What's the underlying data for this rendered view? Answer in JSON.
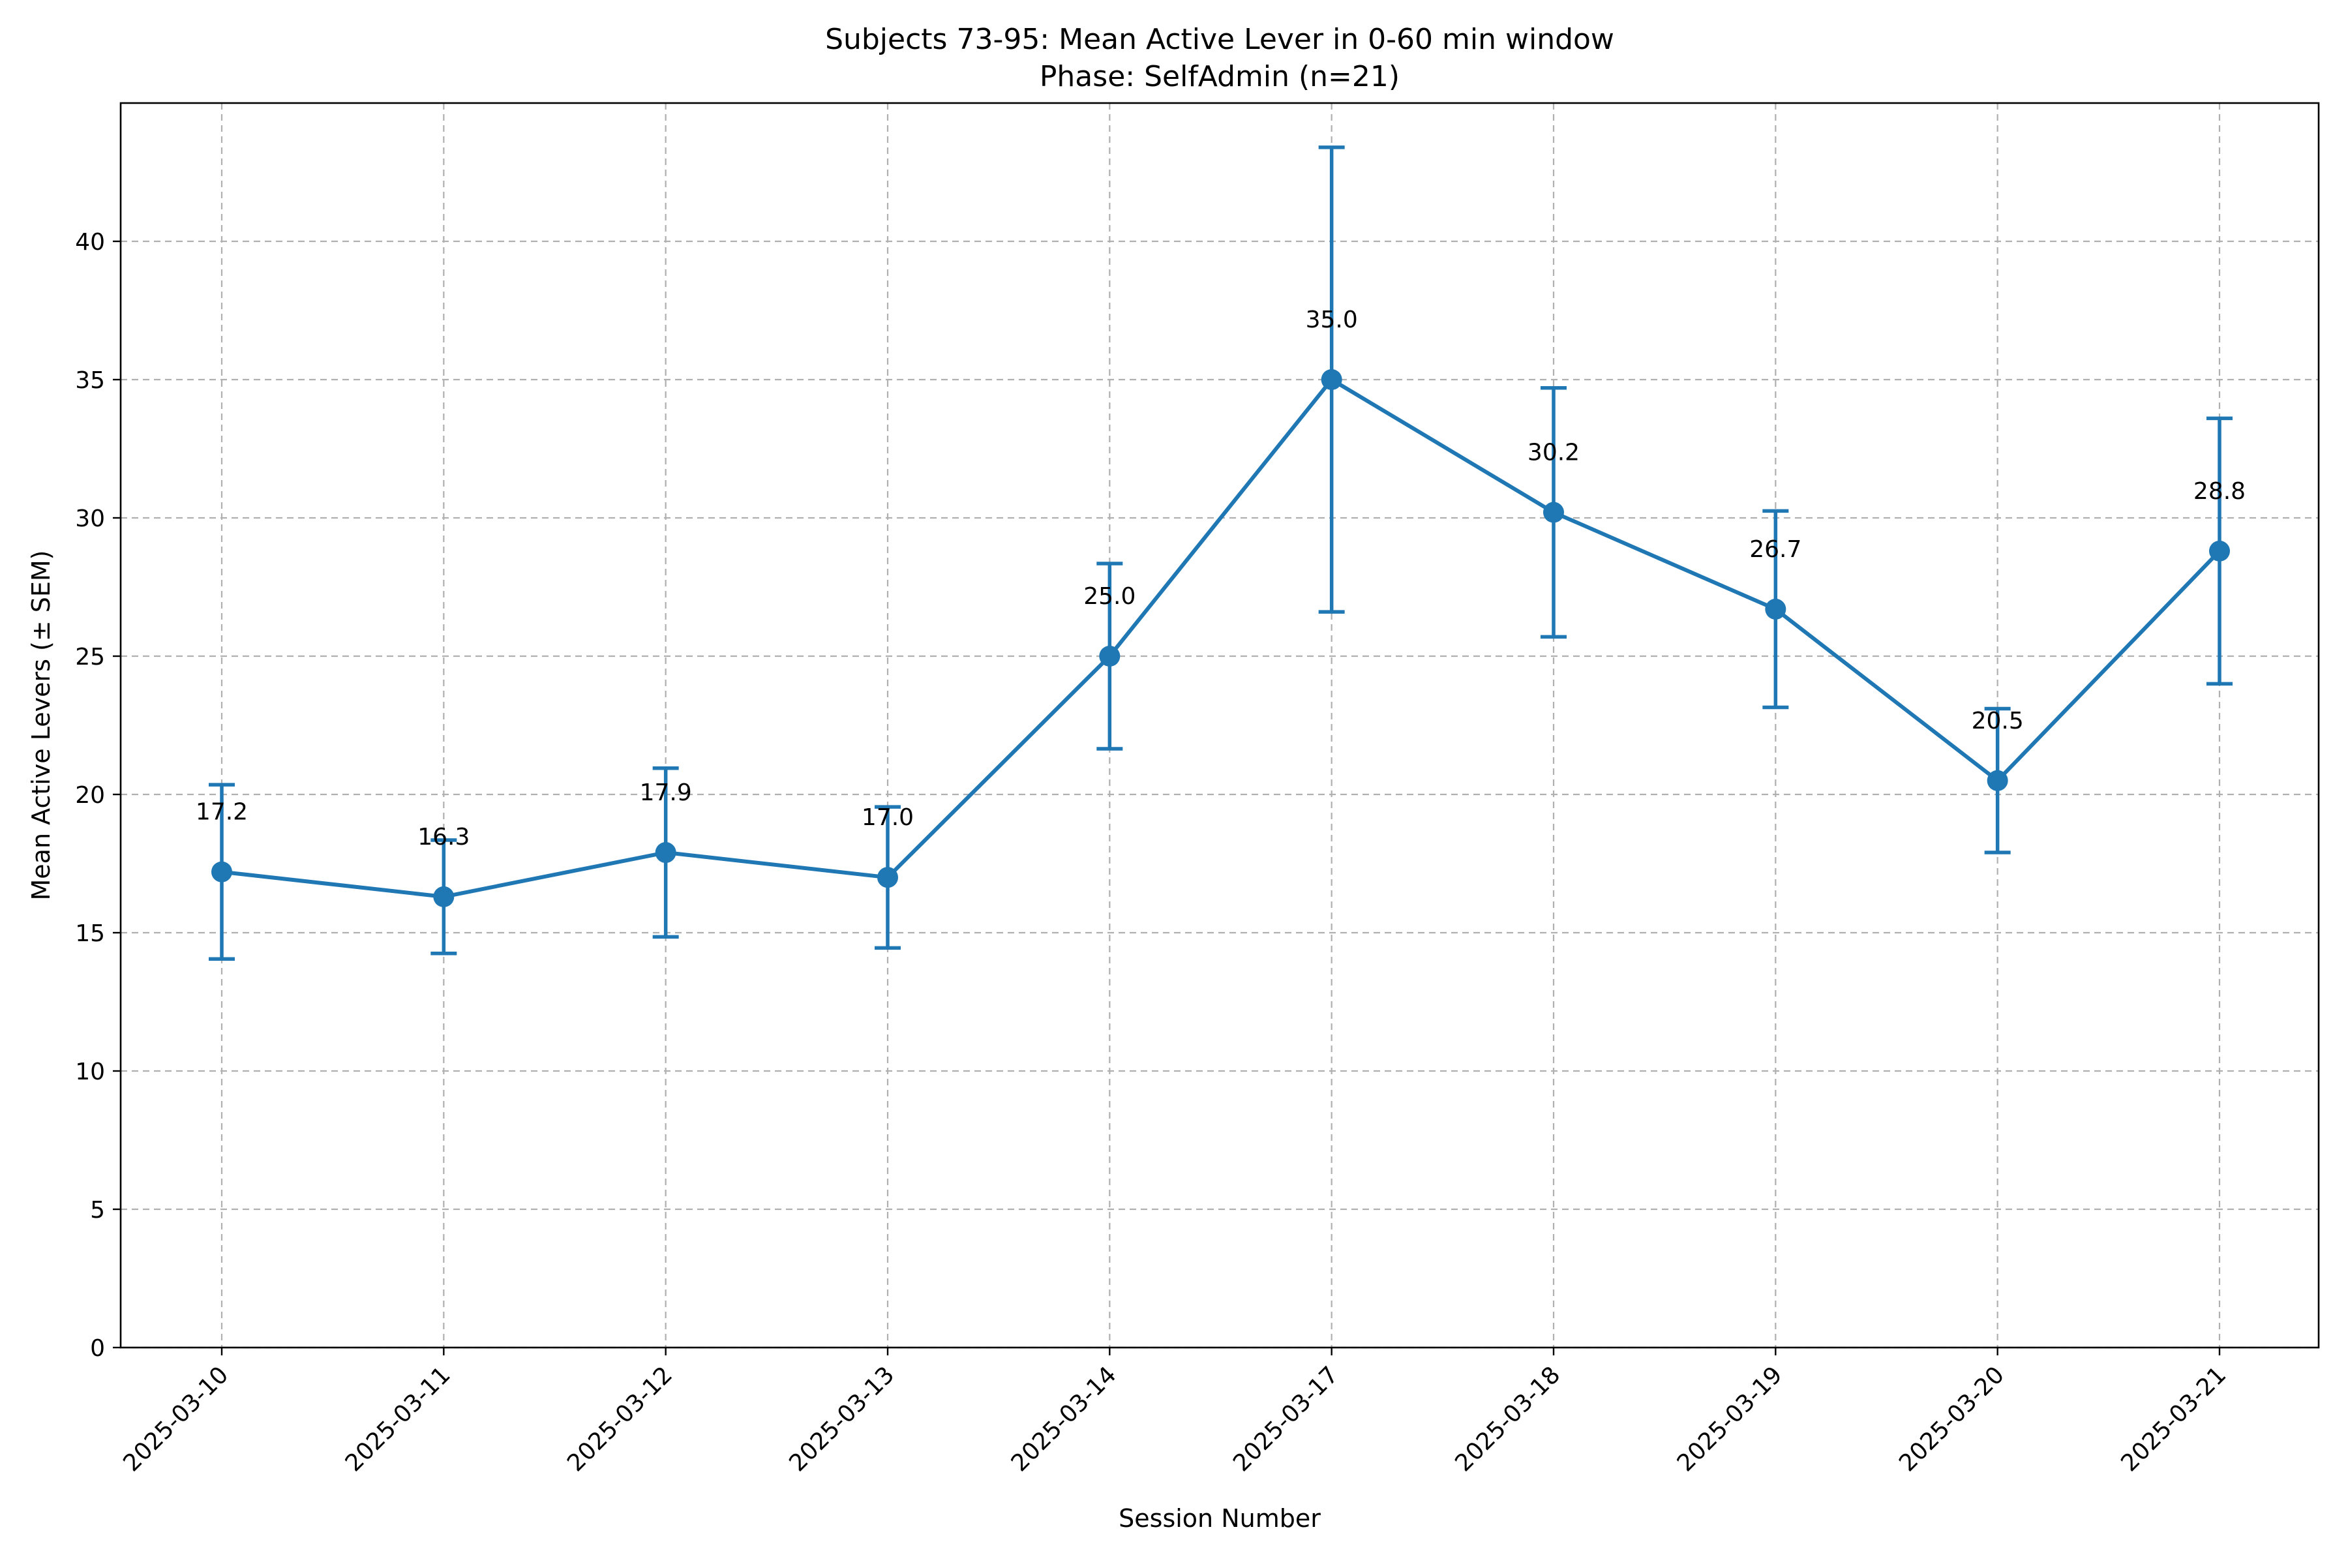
{
  "chart_data": {
    "type": "line",
    "title": "Subjects 73-95: Mean Active Lever in 0-60 min window",
    "subtitle": "Phase: SelfAdmin (n=21)",
    "xlabel": "Session Number",
    "ylabel": "Mean Active Levers (± SEM)",
    "categories": [
      "2025-03-10",
      "2025-03-11",
      "2025-03-12",
      "2025-03-13",
      "2025-03-14",
      "2025-03-17",
      "2025-03-18",
      "2025-03-19",
      "2025-03-20",
      "2025-03-21"
    ],
    "series": [
      {
        "values": [
          17.2,
          16.3,
          17.9,
          17.0,
          25.0,
          35.0,
          30.2,
          26.7,
          20.5,
          28.8
        ],
        "sem": [
          3.15,
          2.05,
          3.05,
          2.55,
          3.35,
          8.4,
          4.5,
          3.55,
          2.6,
          4.8
        ],
        "labels": [
          "17.2",
          "16.3",
          "17.9",
          "17.0",
          "25.0",
          "35.0",
          "30.2",
          "26.7",
          "20.5",
          "28.8"
        ],
        "color": "#1f77b4"
      }
    ],
    "ylim": [
      0,
      45
    ],
    "yticks": [
      0,
      5,
      10,
      15,
      20,
      25,
      30,
      35,
      40
    ],
    "grid": true,
    "legend": "none"
  }
}
